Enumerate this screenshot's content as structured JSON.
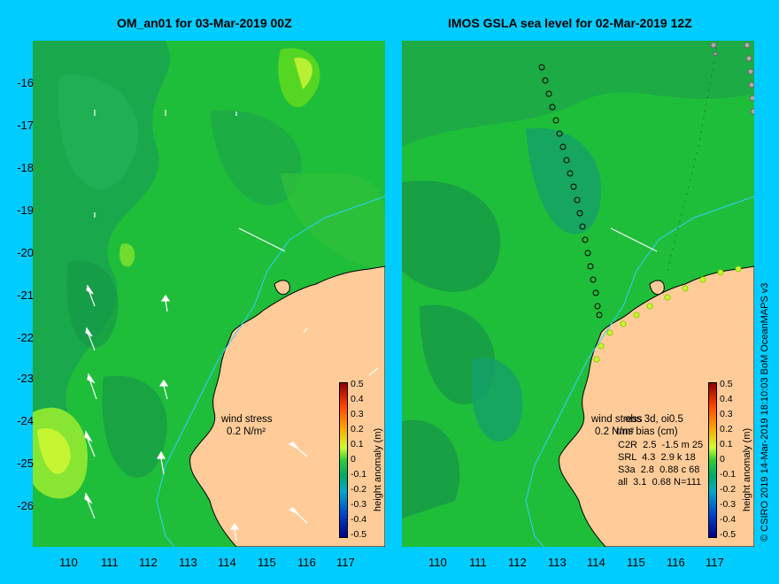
{
  "panels": [
    {
      "title": "OM_an01 for 03-Mar-2019 00Z",
      "wind_label": "wind stress",
      "wind_value": "0.2 N/m²",
      "colorbar_title": "height anomaly (m)"
    },
    {
      "title": "IMOS GSLA sea level  for 02-Mar-2019 12Z",
      "wind_label": "wind stress",
      "wind_value": "0.2 N/m²",
      "overlay_title": "obs 3d, oi0.5",
      "bias_header": "rms bias (cm)",
      "stats": [
        {
          "sat": "C2R",
          "rms": "2.5",
          "bias": "-1.5",
          "unit": "m",
          "n": "25"
        },
        {
          "sat": "SRL",
          "rms": "4.3",
          "bias": "2.9",
          "unit": "k",
          "n": "18"
        },
        {
          "sat": "S3a",
          "rms": "2.8",
          "bias": "0.88",
          "unit": "c",
          "n": "68"
        },
        {
          "sat": "all",
          "rms": "3.1",
          "bias": "0.68",
          "unit": "",
          "n": "N=111"
        }
      ],
      "colorbar_title": "height anomaly (m)"
    }
  ],
  "y_ticks": [
    "-16",
    "-17",
    "-18",
    "-19",
    "-20",
    "-21",
    "-22",
    "-23",
    "-24",
    "-25",
    "-26"
  ],
  "x_ticks": [
    "110",
    "111",
    "112",
    "113",
    "114",
    "115",
    "116",
    "117"
  ],
  "colorbar_ticks": [
    "0.5",
    "0.4",
    "0.3",
    "0.2",
    "0.1",
    "0",
    "-0.1",
    "-0.2",
    "-0.3",
    "-0.4",
    "-0.5"
  ],
  "credit": "© CSIRO 2019  14-Mar-2019 18:10:03 BoM OceanMAPS v3",
  "colors": {
    "background": "#00ccff",
    "land": "#ffcc99",
    "sea": "#1fbe3a",
    "coast": "#000000",
    "isobath": "#33ccff"
  }
}
